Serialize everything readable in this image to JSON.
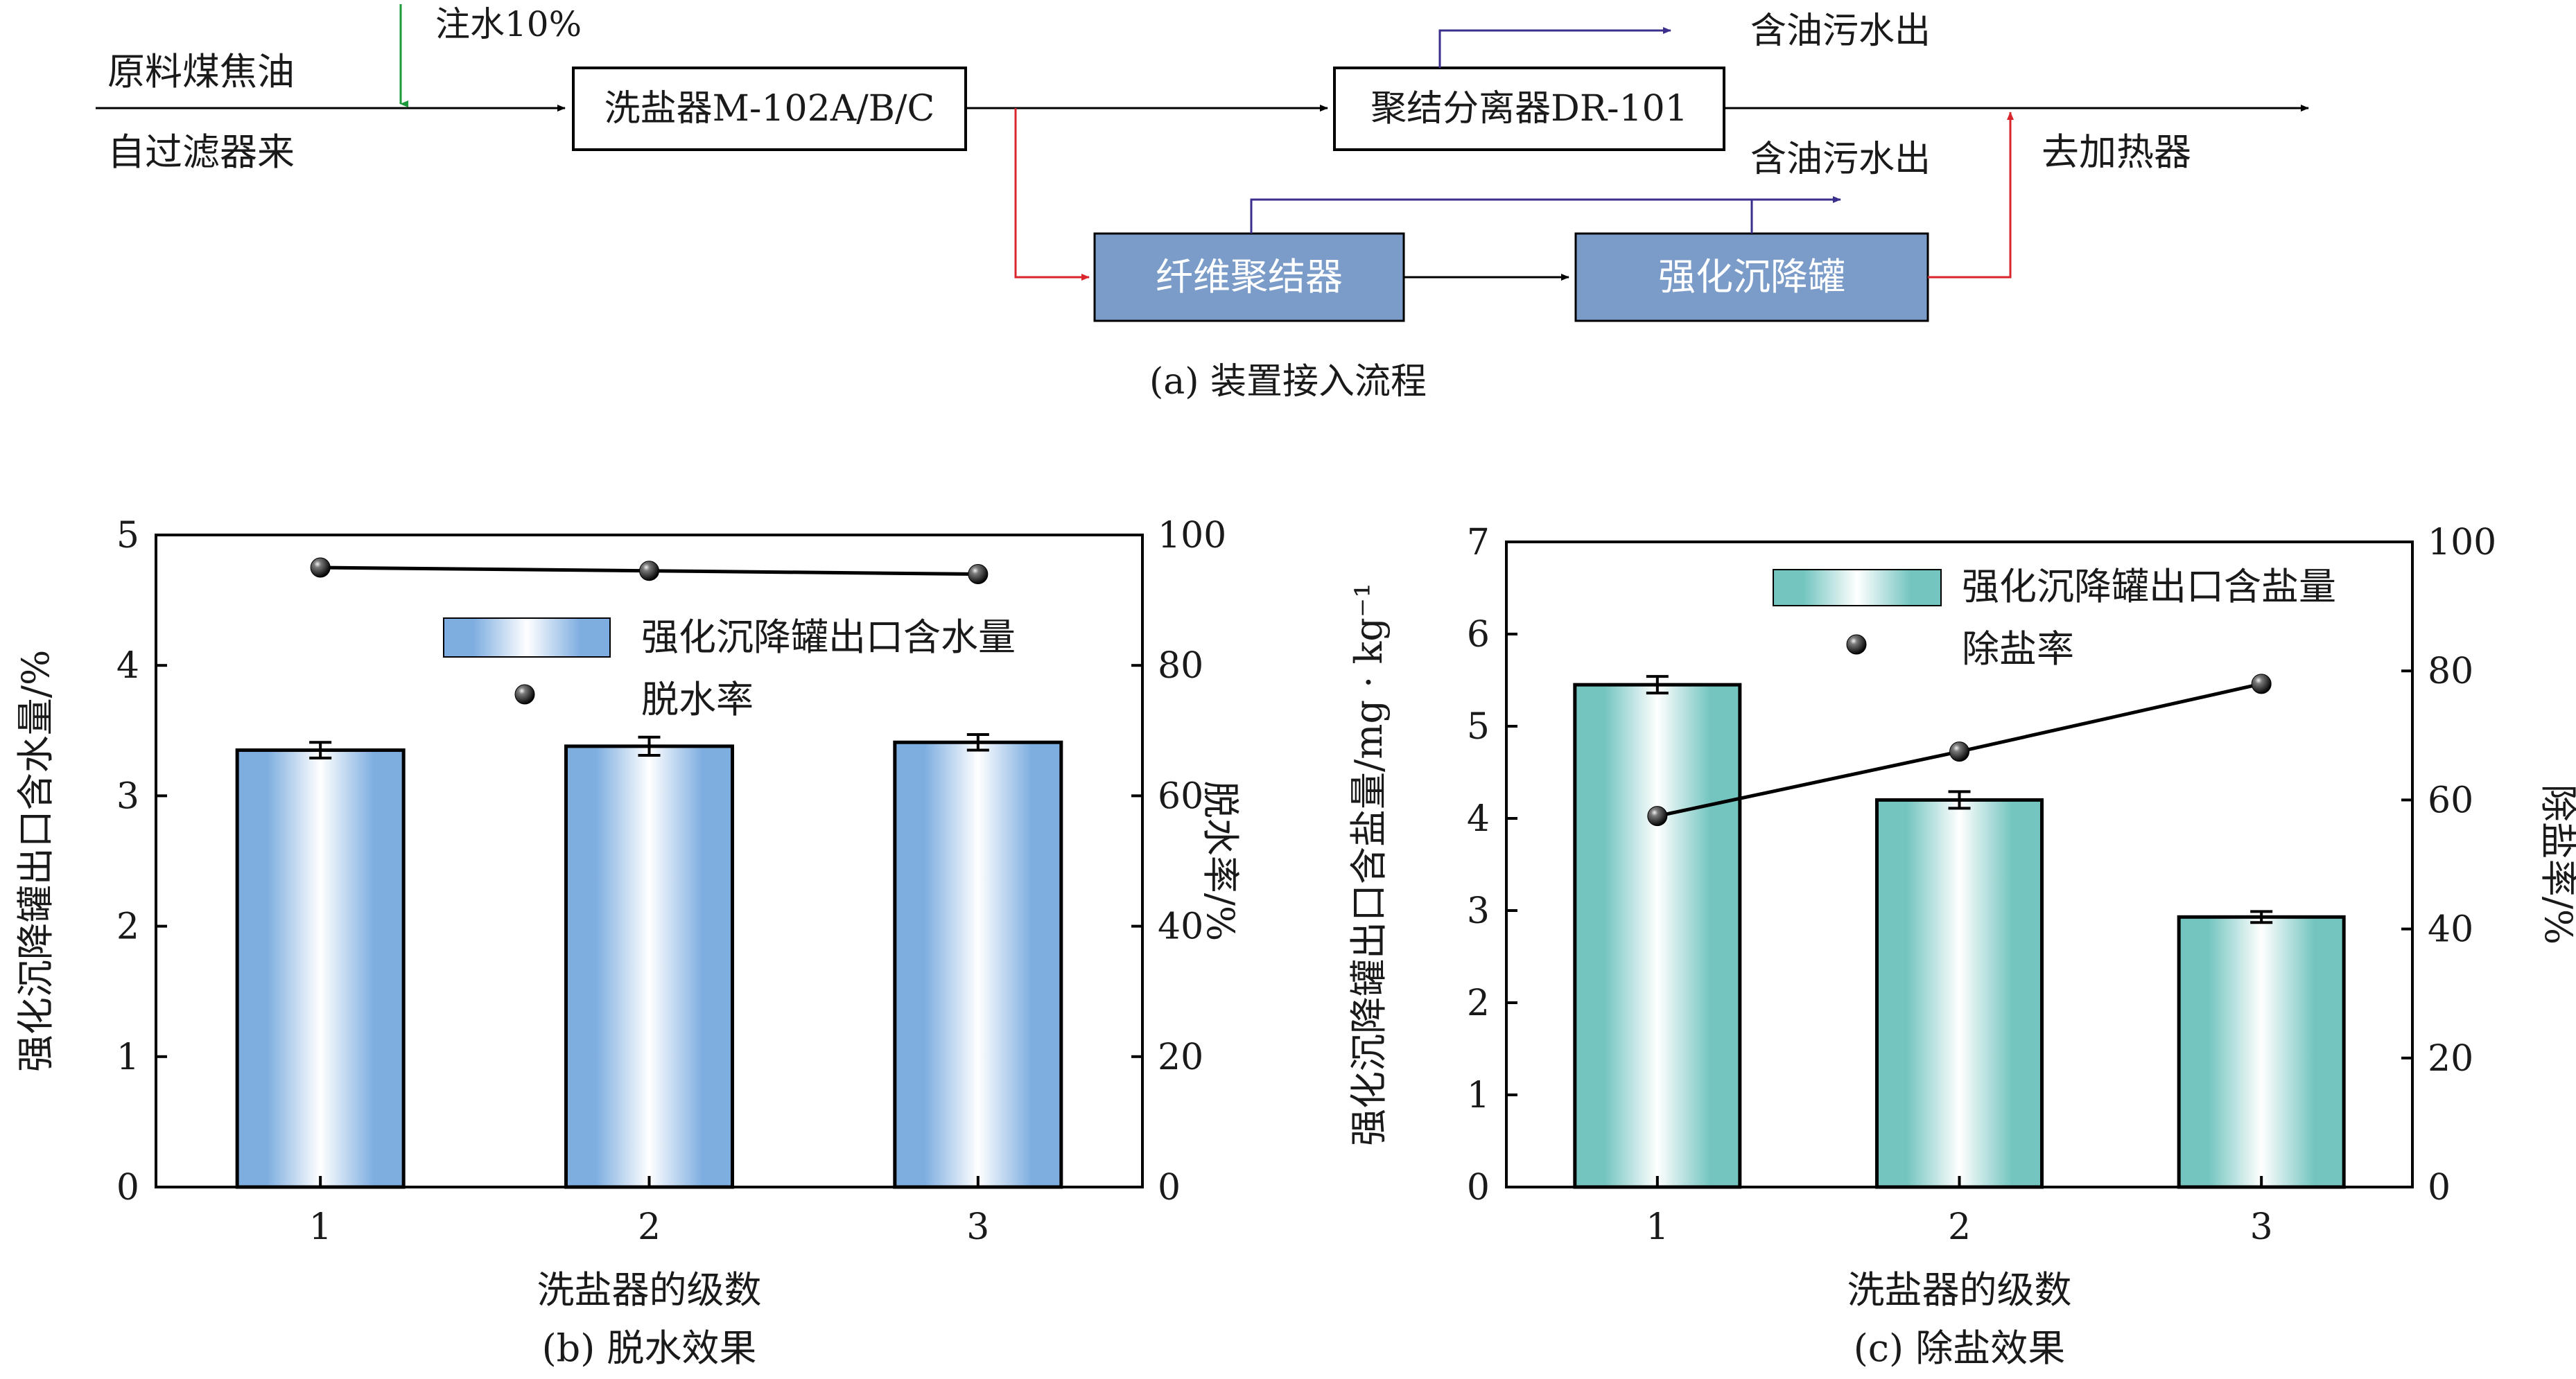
{
  "flow": {
    "feed_top": "原料煤焦油",
    "feed_bottom": "自过滤器来",
    "water_injection": "注水10%",
    "desalter": "洗盐器M-102A/B/C",
    "coalescer_sep": "聚结分离器DR-101",
    "oily_water_out_1": "含油污水出",
    "oily_water_out_2": "含油污水出",
    "to_heater": "去加热器",
    "fiber_coalescer": "纤维聚结器",
    "settling_tank": "强化沉降罐",
    "caption": "(a) 装置接入流程",
    "colors": {
      "main_line": "#000000",
      "water_arrow": "#1a9a3a",
      "bypass_line": "#d9262c",
      "oil_line": "#3a2f8c",
      "equipment_fill": "#7b9cc8"
    }
  },
  "chart_data": [
    {
      "type": "bar",
      "title": "",
      "caption": "(b) 脱水效果",
      "categories": [
        "1",
        "2",
        "3"
      ],
      "xlabel": "洗盐器的级数",
      "ylabel": "强化沉降罐出口含水量/%",
      "ylim": [
        0,
        5
      ],
      "yticks": [
        "0",
        "1",
        "2",
        "3",
        "4",
        "5"
      ],
      "y2label": "脱水率/%",
      "y2lim": [
        0,
        100
      ],
      "y2ticks": [
        "0",
        "20",
        "40",
        "60",
        "80",
        "100"
      ],
      "series": [
        {
          "name": "强化沉降罐出口含水量",
          "type": "bar",
          "axis": "left",
          "values": [
            3.35,
            3.38,
            3.41
          ],
          "errors": [
            0.06,
            0.07,
            0.06
          ],
          "color": "#7eaee0"
        },
        {
          "name": "脱水率",
          "type": "line",
          "axis": "right",
          "values": [
            95,
            94.5,
            94
          ],
          "color": "#000000"
        }
      ],
      "legend_position": "top-right"
    },
    {
      "type": "bar",
      "title": "",
      "caption": "(c) 除盐效果",
      "categories": [
        "1",
        "2",
        "3"
      ],
      "xlabel": "洗盐器的级数",
      "ylabel": "强化沉降罐出口含盐量/mg · kg⁻¹",
      "ylim": [
        0,
        7
      ],
      "yticks": [
        "0",
        "1",
        "2",
        "3",
        "4",
        "5",
        "6",
        "7"
      ],
      "y2label": "除盐率/%",
      "y2lim": [
        0,
        100
      ],
      "y2ticks": [
        "0",
        "20",
        "40",
        "60",
        "80",
        "100"
      ],
      "series": [
        {
          "name": "强化沉降罐出口含盐量",
          "type": "bar",
          "axis": "left",
          "values": [
            5.45,
            4.2,
            2.93
          ],
          "errors": [
            0.09,
            0.09,
            0.06
          ],
          "color": "#74c5c0"
        },
        {
          "name": "除盐率",
          "type": "line",
          "axis": "right",
          "values": [
            57.5,
            67.5,
            78
          ],
          "color": "#000000"
        }
      ],
      "legend_position": "top-right"
    }
  ]
}
